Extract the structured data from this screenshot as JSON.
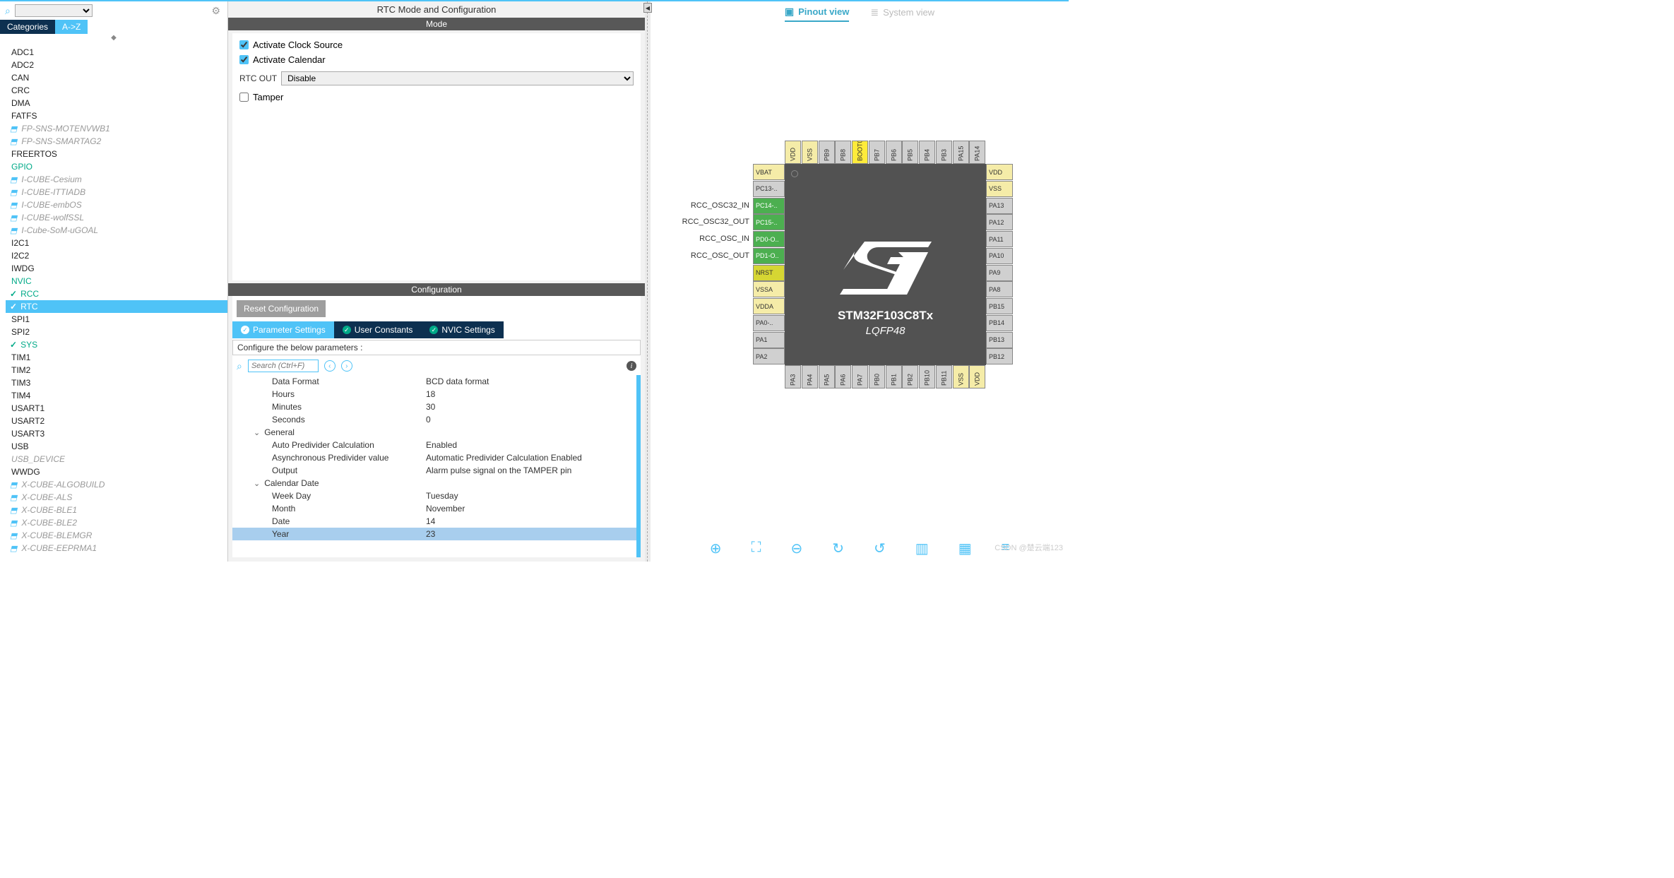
{
  "leftPanel": {
    "tabs": {
      "categories": "Categories",
      "az": "A->Z"
    },
    "items": [
      {
        "label": "ADC1",
        "cls": "p-norm"
      },
      {
        "label": "ADC2",
        "cls": "p-norm"
      },
      {
        "label": "CAN",
        "cls": "p-norm"
      },
      {
        "label": "CRC",
        "cls": "p-norm"
      },
      {
        "label": "DMA",
        "cls": "p-norm"
      },
      {
        "label": "FATFS",
        "cls": "p-norm"
      },
      {
        "label": "FP-SNS-MOTENVWB1",
        "cls": "p-pkg",
        "pkg": true
      },
      {
        "label": "FP-SNS-SMARTAG2",
        "cls": "p-pkg",
        "pkg": true
      },
      {
        "label": "FREERTOS",
        "cls": "p-norm"
      },
      {
        "label": "GPIO",
        "cls": "p-green"
      },
      {
        "label": "I-CUBE-Cesium",
        "cls": "p-pkg",
        "pkg": true
      },
      {
        "label": "I-CUBE-ITTIADB",
        "cls": "p-pkg",
        "pkg": true
      },
      {
        "label": "I-CUBE-embOS",
        "cls": "p-pkg",
        "pkg": true
      },
      {
        "label": "I-CUBE-wolfSSL",
        "cls": "p-pkg",
        "pkg": true
      },
      {
        "label": "I-Cube-SoM-uGOAL",
        "cls": "p-pkg",
        "pkg": true
      },
      {
        "label": "I2C1",
        "cls": "p-norm"
      },
      {
        "label": "I2C2",
        "cls": "p-norm"
      },
      {
        "label": "IWDG",
        "cls": "p-norm"
      },
      {
        "label": "NVIC",
        "cls": "p-green"
      },
      {
        "label": "RCC",
        "cls": "p-green",
        "check": true
      },
      {
        "label": "RTC",
        "cls": "p-green p-sel",
        "check": true
      },
      {
        "label": "SPI1",
        "cls": "p-norm"
      },
      {
        "label": "SPI2",
        "cls": "p-norm"
      },
      {
        "label": "SYS",
        "cls": "p-green",
        "check": true
      },
      {
        "label": "TIM1",
        "cls": "p-norm"
      },
      {
        "label": "TIM2",
        "cls": "p-norm"
      },
      {
        "label": "TIM3",
        "cls": "p-norm"
      },
      {
        "label": "TIM4",
        "cls": "p-norm"
      },
      {
        "label": "USART1",
        "cls": "p-norm"
      },
      {
        "label": "USART2",
        "cls": "p-norm"
      },
      {
        "label": "USART3",
        "cls": "p-norm"
      },
      {
        "label": "USB",
        "cls": "p-norm"
      },
      {
        "label": "USB_DEVICE",
        "cls": "p-pkg"
      },
      {
        "label": "WWDG",
        "cls": "p-norm"
      },
      {
        "label": "X-CUBE-ALGOBUILD",
        "cls": "p-pkg",
        "pkg": true
      },
      {
        "label": "X-CUBE-ALS",
        "cls": "p-pkg",
        "pkg": true
      },
      {
        "label": "X-CUBE-BLE1",
        "cls": "p-pkg",
        "pkg": true
      },
      {
        "label": "X-CUBE-BLE2",
        "cls": "p-pkg",
        "pkg": true
      },
      {
        "label": "X-CUBE-BLEMGR",
        "cls": "p-pkg",
        "pkg": true
      },
      {
        "label": "X-CUBE-EEPRMA1",
        "cls": "p-pkg",
        "pkg": true
      }
    ]
  },
  "mid": {
    "title": "RTC Mode and Configuration",
    "modeTitle": "Mode",
    "activateClock": "Activate Clock Source",
    "activateCalendar": "Activate Calendar",
    "rtcOutLabel": "RTC OUT",
    "rtcOutValue": "Disable",
    "tamper": "Tamper",
    "cfgTitle": "Configuration",
    "resetBtn": "Reset Configuration",
    "cfgTabs": {
      "param": "Parameter Settings",
      "user": "User Constants",
      "nvic": "NVIC Settings"
    },
    "cfgDesc": "Configure the below parameters :",
    "searchPlaceholder": "Search (Ctrl+F)",
    "params": [
      {
        "type": "row",
        "k": "Data Format",
        "v": "BCD data format"
      },
      {
        "type": "row",
        "k": "Hours",
        "v": "18"
      },
      {
        "type": "row",
        "k": "Minutes",
        "v": "30"
      },
      {
        "type": "row",
        "k": "Seconds",
        "v": "0"
      },
      {
        "type": "group",
        "k": "General"
      },
      {
        "type": "row",
        "k": "Auto Predivider Calculation",
        "v": "Enabled"
      },
      {
        "type": "row",
        "k": "Asynchronous Predivider value",
        "v": "Automatic Predivider Calculation Enabled"
      },
      {
        "type": "row",
        "k": "Output",
        "v": "Alarm pulse signal on the TAMPER pin"
      },
      {
        "type": "group",
        "k": "Calendar Date"
      },
      {
        "type": "row",
        "k": "Week Day",
        "v": "Tuesday"
      },
      {
        "type": "row",
        "k": "Month",
        "v": "November"
      },
      {
        "type": "row",
        "k": "Date",
        "v": "14"
      },
      {
        "type": "row",
        "k": "Year",
        "v": "23",
        "sel": true
      }
    ]
  },
  "right": {
    "pinoutView": "Pinout view",
    "systemView": "System view",
    "chipName": "STM32F103C8Tx",
    "chipPkg": "LQFP48",
    "watermark": "CSDN @楚云端123",
    "leftPins": [
      {
        "t": "VBAT",
        "c": "c-khaki",
        "lbl": ""
      },
      {
        "t": "PC13-..",
        "c": "c-gray",
        "lbl": ""
      },
      {
        "t": "PC14-..",
        "c": "c-green",
        "lbl": "RCC_OSC32_IN"
      },
      {
        "t": "PC15-..",
        "c": "c-green",
        "lbl": "RCC_OSC32_OUT"
      },
      {
        "t": "PD0-O..",
        "c": "c-green",
        "lbl": "RCC_OSC_IN"
      },
      {
        "t": "PD1-O..",
        "c": "c-green",
        "lbl": "RCC_OSC_OUT"
      },
      {
        "t": "NRST",
        "c": "c-olive",
        "lbl": ""
      },
      {
        "t": "VSSA",
        "c": "c-khaki",
        "lbl": ""
      },
      {
        "t": "VDDA",
        "c": "c-khaki",
        "lbl": ""
      },
      {
        "t": "PA0-..",
        "c": "c-gray",
        "lbl": ""
      },
      {
        "t": "PA1",
        "c": "c-gray",
        "lbl": ""
      },
      {
        "t": "PA2",
        "c": "c-gray",
        "lbl": ""
      }
    ],
    "rightPins": [
      {
        "t": "VDD",
        "c": "c-khaki"
      },
      {
        "t": "VSS",
        "c": "c-khaki"
      },
      {
        "t": "PA13",
        "c": "c-gray"
      },
      {
        "t": "PA12",
        "c": "c-gray"
      },
      {
        "t": "PA11",
        "c": "c-gray"
      },
      {
        "t": "PA10",
        "c": "c-gray"
      },
      {
        "t": "PA9",
        "c": "c-gray"
      },
      {
        "t": "PA8",
        "c": "c-gray"
      },
      {
        "t": "PB15",
        "c": "c-gray"
      },
      {
        "t": "PB14",
        "c": "c-gray"
      },
      {
        "t": "PB13",
        "c": "c-gray"
      },
      {
        "t": "PB12",
        "c": "c-gray"
      }
    ],
    "topPins": [
      {
        "t": "VDD",
        "c": "c-khaki"
      },
      {
        "t": "VSS",
        "c": "c-khaki"
      },
      {
        "t": "PB9",
        "c": "c-gray"
      },
      {
        "t": "PB8",
        "c": "c-gray"
      },
      {
        "t": "BOOT0",
        "c": "c-yellow"
      },
      {
        "t": "PB7",
        "c": "c-gray"
      },
      {
        "t": "PB6",
        "c": "c-gray"
      },
      {
        "t": "PB5",
        "c": "c-gray"
      },
      {
        "t": "PB4",
        "c": "c-gray"
      },
      {
        "t": "PB3",
        "c": "c-gray"
      },
      {
        "t": "PA15",
        "c": "c-gray"
      },
      {
        "t": "PA14",
        "c": "c-gray"
      }
    ],
    "bottomPins": [
      {
        "t": "PA3",
        "c": "c-gray"
      },
      {
        "t": "PA4",
        "c": "c-gray"
      },
      {
        "t": "PA5",
        "c": "c-gray"
      },
      {
        "t": "PA6",
        "c": "c-gray"
      },
      {
        "t": "PA7",
        "c": "c-gray"
      },
      {
        "t": "PB0",
        "c": "c-gray"
      },
      {
        "t": "PB1",
        "c": "c-gray"
      },
      {
        "t": "PB2",
        "c": "c-gray"
      },
      {
        "t": "PB10",
        "c": "c-gray"
      },
      {
        "t": "PB11",
        "c": "c-gray"
      },
      {
        "t": "VSS",
        "c": "c-khaki"
      },
      {
        "t": "VDD",
        "c": "c-khaki"
      }
    ]
  }
}
